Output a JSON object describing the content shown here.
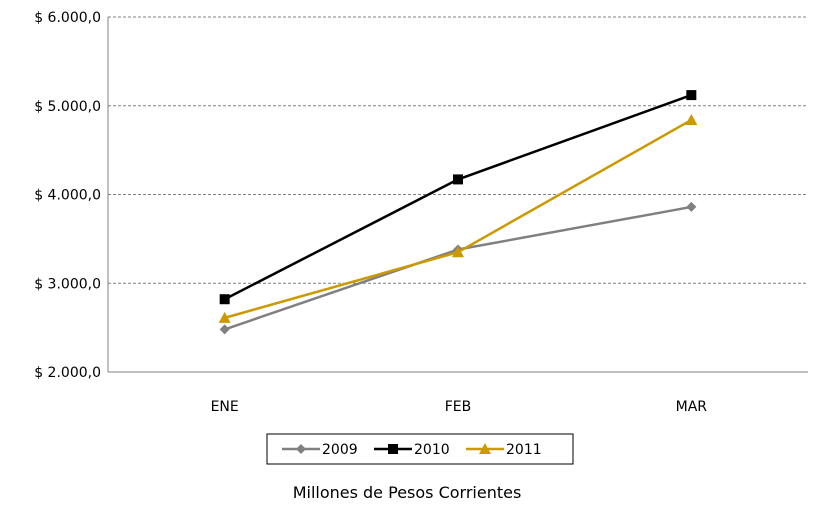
{
  "chart_data": {
    "type": "line",
    "categories": [
      "ENE",
      "FEB",
      "MAR"
    ],
    "series": [
      {
        "name": "2009",
        "values": [
          2480,
          3380,
          3860
        ],
        "color": "#808080",
        "marker": "diamond"
      },
      {
        "name": "2010",
        "values": [
          2820,
          4170,
          5120
        ],
        "color": "#000000",
        "marker": "square"
      },
      {
        "name": "2011",
        "values": [
          2610,
          3350,
          4840
        ],
        "color": "#CC9900",
        "marker": "triangle"
      }
    ],
    "ylim": [
      2000,
      6000
    ],
    "yticks": [
      2000,
      3000,
      4000,
      5000,
      6000
    ],
    "ytick_labels": [
      "$ 2.000,0",
      "$ 3.000,0",
      "$ 4.000,0",
      "$ 5.000,0",
      "$ 6.000,0"
    ],
    "grid": true,
    "legend_position": "bottom"
  },
  "caption": "Millones de Pesos Corrientes"
}
